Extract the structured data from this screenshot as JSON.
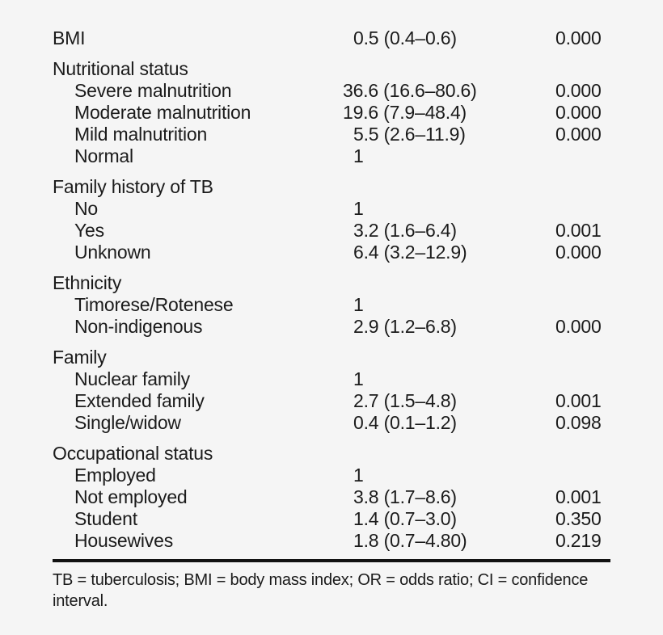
{
  "table": {
    "semantic_columns": [
      "characteristic",
      "odds_ratio_95ci",
      "p_value"
    ],
    "rows": [
      {
        "type": "data",
        "label": "BMI",
        "indent": 0,
        "or": "0.5",
        "ci": "(0.4–0.6)",
        "p": "0.000"
      },
      {
        "type": "section",
        "label": "Nutritional status"
      },
      {
        "type": "data",
        "label": "Severe malnutrition",
        "indent": 1,
        "or": "36.6",
        "ci": "(16.6–80.6)",
        "p": "0.000"
      },
      {
        "type": "data",
        "label": "Moderate malnutrition",
        "indent": 1,
        "or": "19.6",
        "ci": "(7.9–48.4)",
        "p": "0.000"
      },
      {
        "type": "data",
        "label": "Mild malnutrition",
        "indent": 1,
        "or": "5.5",
        "ci": "(2.6–11.9)",
        "p": "0.000"
      },
      {
        "type": "data",
        "label": "Normal",
        "indent": 1,
        "or": "1",
        "ci": "",
        "p": ""
      },
      {
        "type": "section",
        "label": "Family history of TB"
      },
      {
        "type": "data",
        "label": "No",
        "indent": 1,
        "or": "1",
        "ci": "",
        "p": ""
      },
      {
        "type": "data",
        "label": "Yes",
        "indent": 1,
        "or": "3.2",
        "ci": "(1.6–6.4)",
        "p": "0.001"
      },
      {
        "type": "data",
        "label": "Unknown",
        "indent": 1,
        "or": "6.4",
        "ci": "(3.2–12.9)",
        "p": "0.000"
      },
      {
        "type": "section",
        "label": "Ethnicity"
      },
      {
        "type": "data",
        "label": "Timorese/Rotenese",
        "indent": 1,
        "or": "1",
        "ci": "",
        "p": ""
      },
      {
        "type": "data",
        "label": "Non-indigenous",
        "indent": 1,
        "or": "2.9",
        "ci": "(1.2–6.8)",
        "p": "0.000"
      },
      {
        "type": "section",
        "label": "Family"
      },
      {
        "type": "data",
        "label": "Nuclear family",
        "indent": 1,
        "or": "1",
        "ci": "",
        "p": ""
      },
      {
        "type": "data",
        "label": "Extended family",
        "indent": 1,
        "or": "2.7",
        "ci": "(1.5–4.8)",
        "p": "0.001"
      },
      {
        "type": "data",
        "label": "Single/widow",
        "indent": 1,
        "or": "0.4",
        "ci": "(0.1–1.2)",
        "p": "0.098"
      },
      {
        "type": "section",
        "label": "Occupational status"
      },
      {
        "type": "data",
        "label": "Employed",
        "indent": 1,
        "or": "1",
        "ci": "",
        "p": ""
      },
      {
        "type": "data",
        "label": "Not employed",
        "indent": 1,
        "or": "3.8",
        "ci": "(1.7–8.6)",
        "p": "0.001"
      },
      {
        "type": "data",
        "label": "Student",
        "indent": 1,
        "or": "1.4",
        "ci": "(0.7–3.0)",
        "p": "0.350"
      },
      {
        "type": "data",
        "label": "Housewives",
        "indent": 1,
        "or": "1.8",
        "ci": "(0.7–4.80)",
        "p": "0.219"
      }
    ]
  },
  "footnote": {
    "line1": "TB = tuberculosis; BMI = body mass index; OR = odds ratio; CI = confidence",
    "line2": "interval."
  },
  "colors": {
    "background": "#f5f5f5",
    "text": "#1b1b1b",
    "rule": "#121212"
  }
}
